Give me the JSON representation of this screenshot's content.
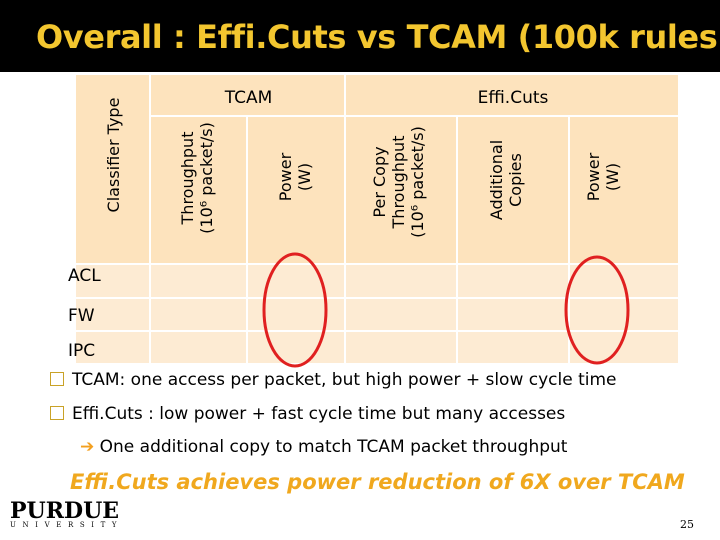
{
  "slide": {
    "title": "Overall : Effi.Cuts vs TCAM (100k rules)",
    "page_number": "25"
  },
  "table": {
    "header_classifier": "Classifier Type",
    "group_tcam": "TCAM",
    "group_efficuts": "Effi.Cuts",
    "col_throughput_l1": "Throughput",
    "col_throughput_l2": "(10⁶ packet/s)",
    "col_power_l1": "Power",
    "col_power_l2": "(W)",
    "col_percopy_l1": "Per Copy",
    "col_percopy_l2": "Throughput",
    "col_percopy_l3": "(10⁶ packet/s)",
    "col_addcopies_l1": "Additional",
    "col_addcopies_l2": "Copies",
    "col_power2_l1": "Power",
    "col_power2_l2": "(W)",
    "rows": [
      "ACL",
      "FW",
      "IPC"
    ]
  },
  "bullets": {
    "b1": "TCAM: one access per packet, but high power + slow cycle time",
    "b2": "Effi.Cuts : low power + fast cycle time but many accesses",
    "sub": "One additional copy to match TCAM packet throughput"
  },
  "highlight": "Effi.Cuts achieves power reduction of 6X over TCAM",
  "logo": {
    "main": "PURDUE",
    "sub": "UNIVERSITY"
  },
  "colors": {
    "title_bar": "#000000",
    "title_text": "#f3c62f",
    "cell_fill": "#fdebd3",
    "ellipse": "#e02020",
    "highlight_text": "#f0a81e"
  }
}
